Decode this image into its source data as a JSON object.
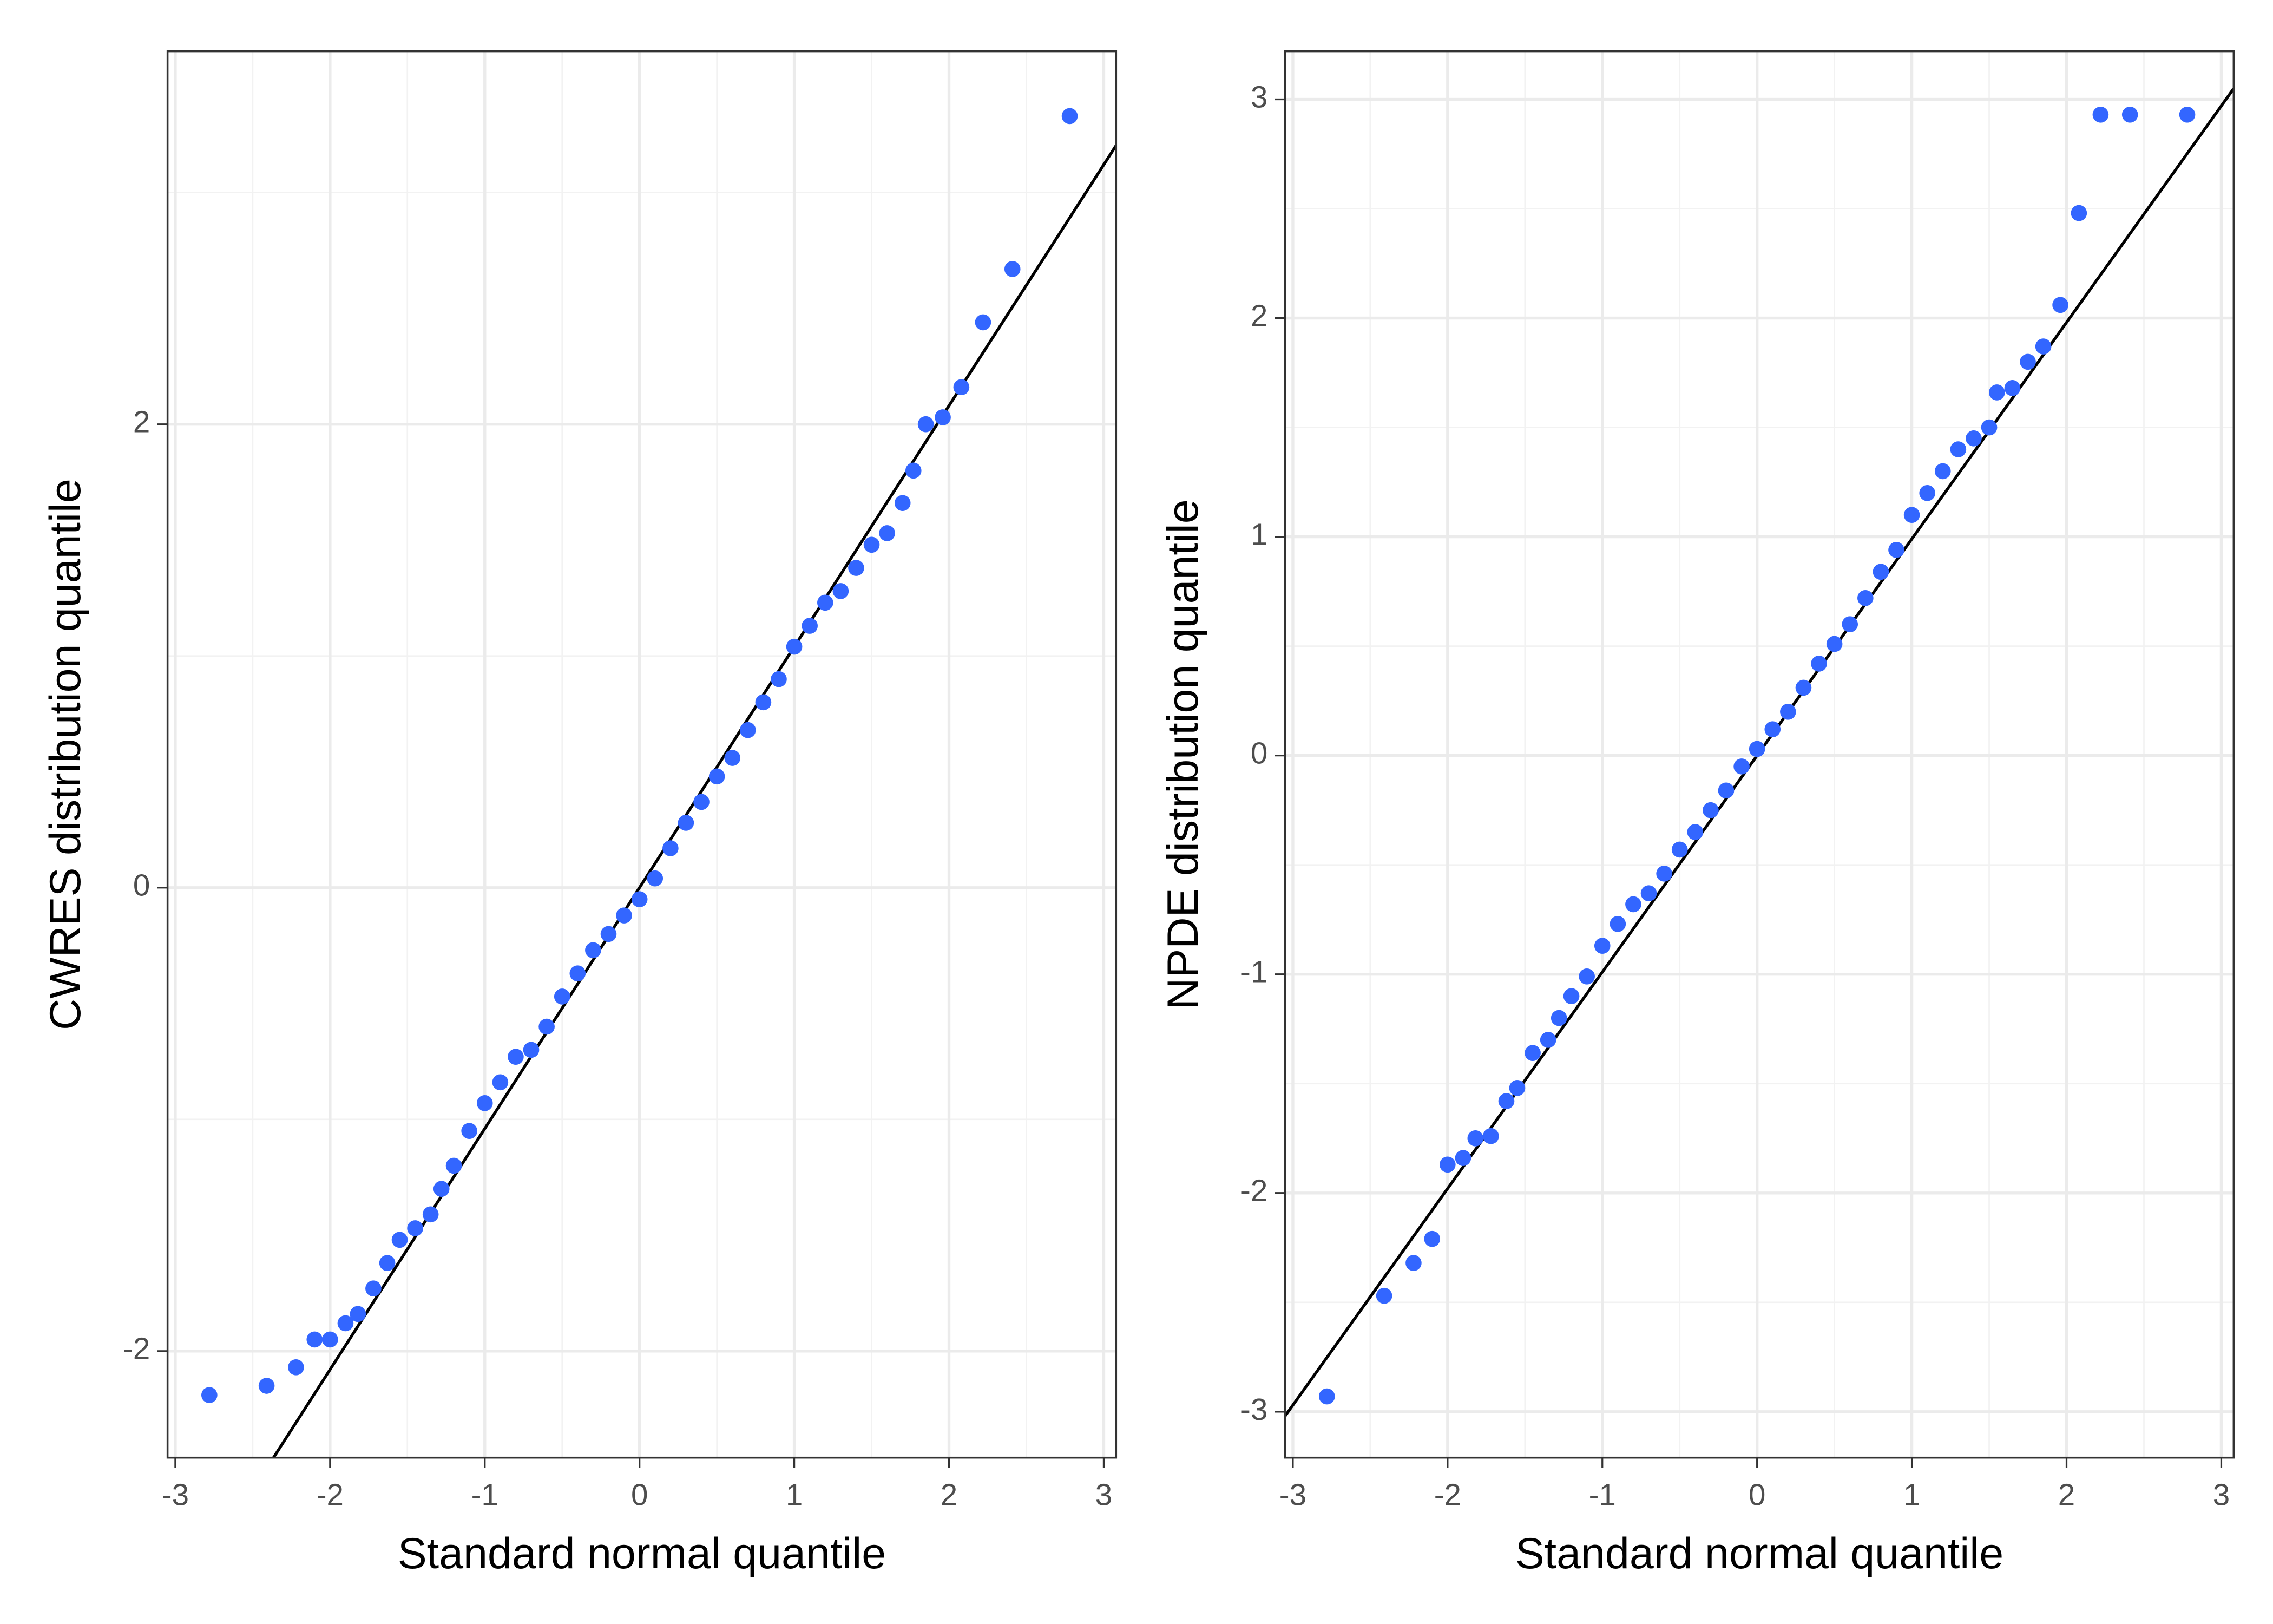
{
  "chart_data": [
    {
      "type": "scatter",
      "xlabel": "Standard normal quantile",
      "ylabel": "CWRES distribution quantile",
      "color": "#3366ff",
      "line_color": "#000000",
      "reference_line": {
        "intercept": 0,
        "slope": 1.04
      },
      "xlim": [
        -3.05,
        3.08
      ],
      "ylim": [
        -2.46,
        3.61
      ],
      "xticks": [
        -3,
        -2,
        -1,
        0,
        1,
        2,
        3
      ],
      "yticks": [
        -2,
        0,
        2
      ],
      "xminorticks": [
        -2.5,
        -1.5,
        -0.5,
        0.5,
        1.5,
        2.5
      ],
      "yminorticks": [
        -1,
        1,
        3
      ],
      "grid": true,
      "x": [
        -2.78,
        -2.41,
        -2.22,
        -2.1,
        -2.0,
        -1.9,
        -1.82,
        -1.72,
        -1.63,
        -1.55,
        -1.45,
        -1.35,
        -1.28,
        -1.2,
        -1.1,
        -1.0,
        -0.9,
        -0.8,
        -0.7,
        -0.6,
        -0.5,
        -0.4,
        -0.3,
        -0.2,
        -0.1,
        0,
        0.1,
        0.2,
        0.3,
        0.4,
        0.5,
        0.6,
        0.7,
        0.8,
        0.9,
        1.0,
        1.1,
        1.2,
        1.3,
        1.4,
        1.5,
        1.6,
        1.7,
        1.77,
        1.85,
        1.96,
        2.08,
        2.22,
        2.41,
        2.78
      ],
      "values": [
        -2.19,
        -2.15,
        -2.07,
        -1.95,
        -1.95,
        -1.88,
        -1.84,
        -1.73,
        -1.62,
        -1.52,
        -1.47,
        -1.41,
        -1.3,
        -1.2,
        -1.05,
        -0.93,
        -0.84,
        -0.73,
        -0.7,
        -0.6,
        -0.47,
        -0.37,
        -0.27,
        -0.2,
        -0.12,
        -0.05,
        0.04,
        0.17,
        0.28,
        0.37,
        0.48,
        0.56,
        0.68,
        0.8,
        0.9,
        1.04,
        1.13,
        1.23,
        1.28,
        1.38,
        1.48,
        1.53,
        1.66,
        1.8,
        2.0,
        2.03,
        2.16,
        2.44,
        2.67,
        3.33
      ]
    },
    {
      "type": "scatter",
      "xlabel": "Standard normal quantile",
      "ylabel": "NPDE distribution quantile",
      "color": "#3366ff",
      "line_color": "#000000",
      "reference_line": {
        "intercept": 0,
        "slope": 0.99
      },
      "xlim": [
        -3.05,
        3.08
      ],
      "ylim": [
        -3.21,
        3.22
      ],
      "xticks": [
        -3,
        -2,
        -1,
        0,
        1,
        2,
        3
      ],
      "yticks": [
        -3,
        -2,
        -1,
        0,
        1,
        2,
        3
      ],
      "xminorticks": [
        -2.5,
        -1.5,
        -0.5,
        0.5,
        1.5,
        2.5
      ],
      "yminorticks": [
        -2.5,
        -1.5,
        -0.5,
        0.5,
        1.5,
        2.5
      ],
      "grid": true,
      "x": [
        -2.78,
        -2.41,
        -2.22,
        -2.1,
        -2.0,
        -1.9,
        -1.82,
        -1.72,
        -1.62,
        -1.55,
        -1.45,
        -1.35,
        -1.28,
        -1.2,
        -1.1,
        -1.0,
        -0.9,
        -0.8,
        -0.7,
        -0.6,
        -0.5,
        -0.4,
        -0.3,
        -0.2,
        -0.1,
        0,
        0.1,
        0.2,
        0.3,
        0.4,
        0.5,
        0.6,
        0.7,
        0.8,
        0.9,
        1.0,
        1.1,
        1.2,
        1.3,
        1.4,
        1.5,
        1.55,
        1.65,
        1.75,
        1.85,
        1.96,
        2.08,
        2.22,
        2.41,
        2.78
      ],
      "values": [
        -2.93,
        -2.47,
        -2.32,
        -2.21,
        -1.87,
        -1.84,
        -1.75,
        -1.74,
        -1.58,
        -1.52,
        -1.36,
        -1.3,
        -1.2,
        -1.1,
        -1.01,
        -0.87,
        -0.77,
        -0.68,
        -0.63,
        -0.54,
        -0.43,
        -0.35,
        -0.25,
        -0.16,
        -0.05,
        0.03,
        0.12,
        0.2,
        0.31,
        0.42,
        0.51,
        0.6,
        0.72,
        0.84,
        0.94,
        1.1,
        1.2,
        1.3,
        1.4,
        1.45,
        1.5,
        1.66,
        1.68,
        1.8,
        1.87,
        2.06,
        2.48,
        2.93,
        2.93,
        2.93
      ]
    }
  ]
}
